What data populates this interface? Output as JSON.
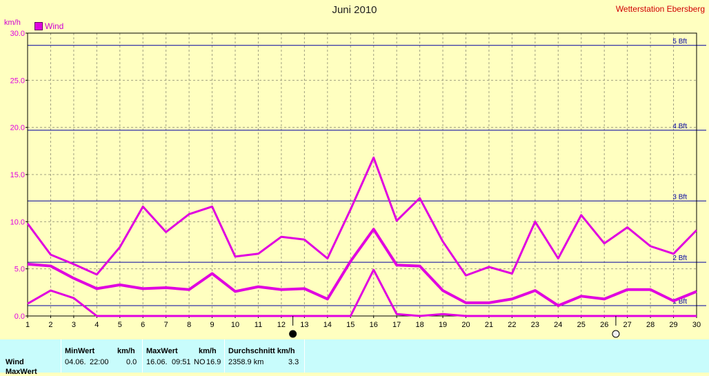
{
  "title": "Juni 2010",
  "station": "Wetterstation Ebersberg",
  "unit_label": "km/h",
  "legend": "Wind",
  "colors": {
    "series": "#e000e0",
    "background": "#ffffc0",
    "table_bg": "#c8fcfc",
    "beaufort": "#0000a0",
    "grid": "#a0a080"
  },
  "icons": {
    "new_moon_day": "new-moon-icon",
    "full_moon_day": "full-moon-icon"
  },
  "chart_data": {
    "type": "line",
    "title": "Juni 2010",
    "ylabel": "km/h",
    "ylim": [
      0,
      30
    ],
    "yticks": [
      "0.0",
      "5.0",
      "10.0",
      "15.0",
      "20.0",
      "25.0",
      "30.0"
    ],
    "x": [
      1,
      2,
      3,
      4,
      5,
      6,
      7,
      8,
      9,
      10,
      11,
      12,
      13,
      14,
      15,
      16,
      17,
      18,
      19,
      20,
      21,
      22,
      23,
      24,
      25,
      26,
      27,
      28,
      29,
      30
    ],
    "xticks": [
      "1",
      "2",
      "3",
      "4",
      "5",
      "6",
      "7",
      "8",
      "9",
      "10",
      "11",
      "12",
      "13",
      "14",
      "15",
      "16",
      "17",
      "18",
      "19",
      "20",
      "21",
      "22",
      "23",
      "24",
      "25",
      "26",
      "27",
      "28",
      "29",
      "30"
    ],
    "grid": true,
    "legend_position": "top-left",
    "series": [
      {
        "name": "Wind",
        "values": [
          9.8,
          6.5,
          5.5,
          4.4,
          7.3,
          11.6,
          8.9,
          10.8,
          11.6,
          6.3,
          6.6,
          8.4,
          8.1,
          6.1,
          11.3,
          16.8,
          10.1,
          12.5,
          7.9,
          4.3,
          5.2,
          4.5,
          10.0,
          6.1,
          10.7,
          7.7,
          9.4,
          7.4,
          6.6,
          9.1
        ],
        "stroke_width": 3
      },
      {
        "values": [
          5.5,
          5.3,
          4.0,
          2.9,
          3.3,
          2.9,
          3.0,
          2.8,
          4.5,
          2.6,
          3.1,
          2.8,
          2.9,
          1.8,
          5.8,
          9.2,
          5.4,
          5.3,
          2.7,
          1.4,
          1.4,
          1.8,
          2.7,
          1.1,
          2.1,
          1.8,
          2.8,
          2.8,
          1.6,
          2.6
        ],
        "stroke_width": 4
      },
      {
        "values": [
          1.3,
          2.7,
          1.9,
          0.0,
          0.0,
          0.0,
          0.0,
          0.0,
          0.0,
          0.0,
          0.0,
          0.0,
          0.0,
          0.0,
          0.0,
          4.9,
          0.2,
          0.0,
          0.2,
          0.0,
          0.0,
          0.0,
          0.0,
          0.0,
          0.0,
          0.0,
          0.0,
          0.0,
          0.0,
          0.0
        ],
        "stroke_width": 3
      }
    ],
    "reference_lines": [
      {
        "label": "1 Bft",
        "value": 1.1
      },
      {
        "label": "2 Bft",
        "value": 5.7
      },
      {
        "label": "3 Bft",
        "value": 12.2
      },
      {
        "label": "4 Bft",
        "value": 19.7
      },
      {
        "label": "5 Bft",
        "value": 28.7
      }
    ],
    "moon_phases": [
      {
        "x": 12.5,
        "icon": "new-moon-icon"
      },
      {
        "x": 26.5,
        "icon": "full-moon-icon"
      }
    ]
  },
  "table": {
    "row_label": "Wind",
    "row_label_cut": "MaxWert",
    "min_header": "MinWert",
    "min_unit": "km/h",
    "min_date": "04.06.",
    "min_time": "22:00",
    "min_value": "0.0",
    "max_header": "MaxWert",
    "max_unit": "km/h",
    "max_date": "16.06.",
    "max_time": "09:51",
    "max_dir": "NO",
    "max_value": "16.9",
    "avg_header": "Durchschnitt km/h",
    "avg_distance": "2358.9 km",
    "avg_value": "3.3"
  }
}
